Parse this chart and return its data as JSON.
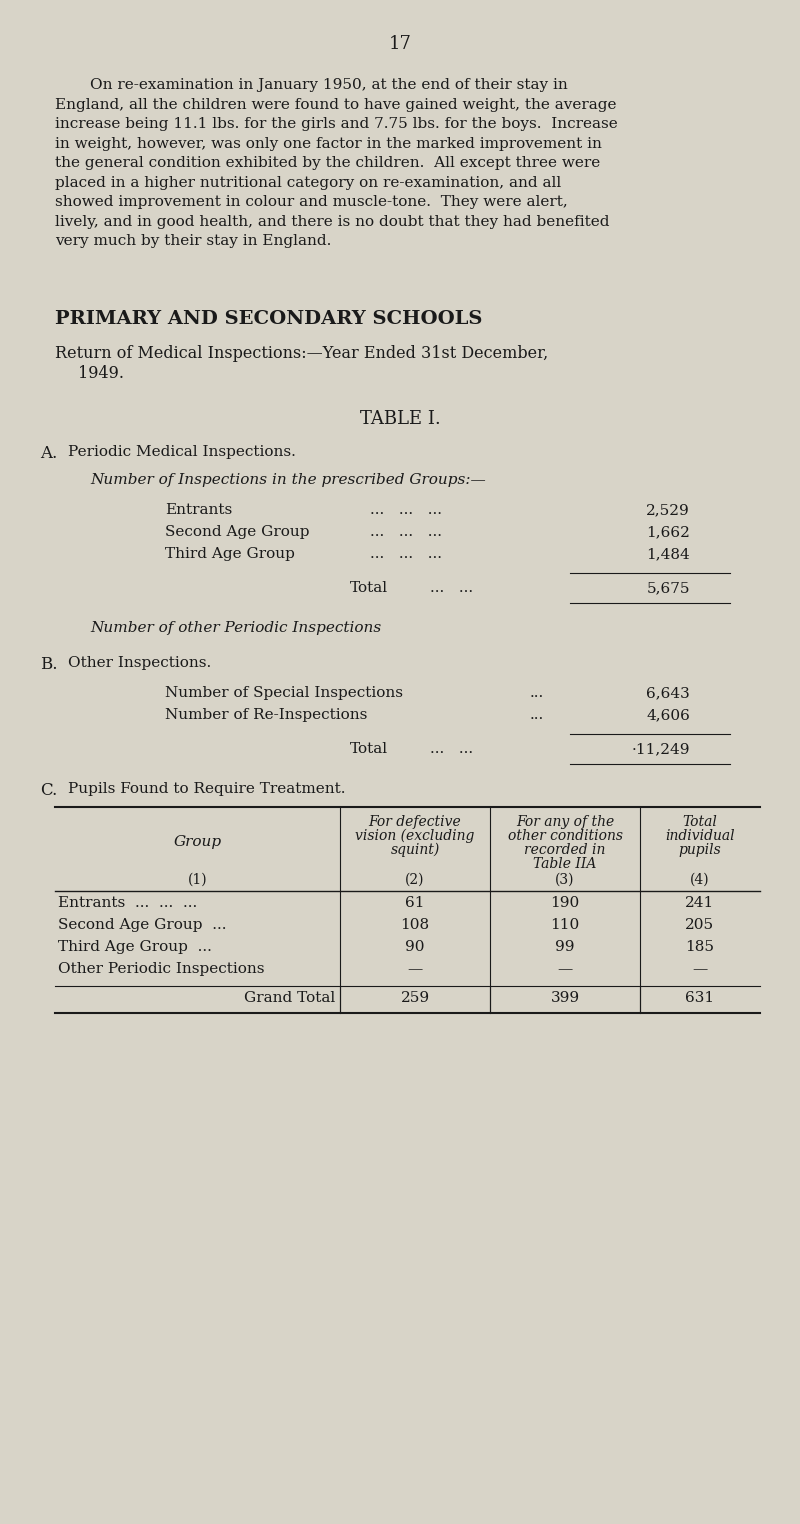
{
  "background_color": "#d8d4c8",
  "page_number": "17",
  "paragraph": "On re-examination in January 1950, at the end of their stay in England, all the children were found to have gained weight, the average increase being 11.1 lbs. for the girls and 7.75 lbs. for the boys.  Increase in weight, however, was only one factor in the marked improvement in the general condition exhibited by the children.  All except three were placed in a higher nutritional category on re-examination, and all showed improvement in colour and muscle-tone.  They were alert, lively, and in good health, and there is no doubt that they had benefited very much by their stay in England.",
  "section_title": "PRIMARY AND SECONDARY SCHOOLS",
  "subtitle": "Return of Medical Inspections:—Year Ended 31st December, 1949.",
  "table_title": "TABLE I.",
  "section_a_title": "A.  Periodic Medical Inspections.",
  "section_a_italic": "Number of Inspections in the prescribed Groups:—",
  "section_a_rows": [
    [
      "Entrants",
      "2,529"
    ],
    [
      "Second Age Group",
      "1,662"
    ],
    [
      "Third Age Group",
      "1,484"
    ]
  ],
  "section_a_total_label": "Total",
  "section_a_total_value": "5,675",
  "section_a_other": "Number of other Periodic Inspections",
  "section_b_title": "B.  Other Inspections.",
  "section_b_rows": [
    [
      "Number of Special Inspections",
      "6,643"
    ],
    [
      "Number of Re-Inspections",
      "4,606"
    ]
  ],
  "section_b_total_label": "Total",
  "section_b_total_value": "·11,249",
  "section_c_title": "C.  Pupils Found to Require Treatment.",
  "table_col_headers": [
    "Group",
    "For defective\nvision (excluding\nsquint)",
    "For any of the\nother conditions\nrecorded in\nTable IIA",
    "Total\nindividual\npupils"
  ],
  "table_col_numbers": [
    "(1)",
    "(2)",
    "(3)",
    "(4)"
  ],
  "table_rows": [
    [
      "Entrants  ...  ...  ...",
      "61",
      "190",
      "241"
    ],
    [
      "Second Age Group  ...",
      "108",
      "110",
      "205"
    ],
    [
      "Third Age Group  ...",
      "90",
      "99",
      "185"
    ],
    [
      "Other Periodic Inspections",
      "—",
      "—",
      "—"
    ]
  ],
  "table_grand_total": [
    "Grand Total",
    "259",
    "399",
    "631"
  ],
  "text_color": "#1a1a1a"
}
